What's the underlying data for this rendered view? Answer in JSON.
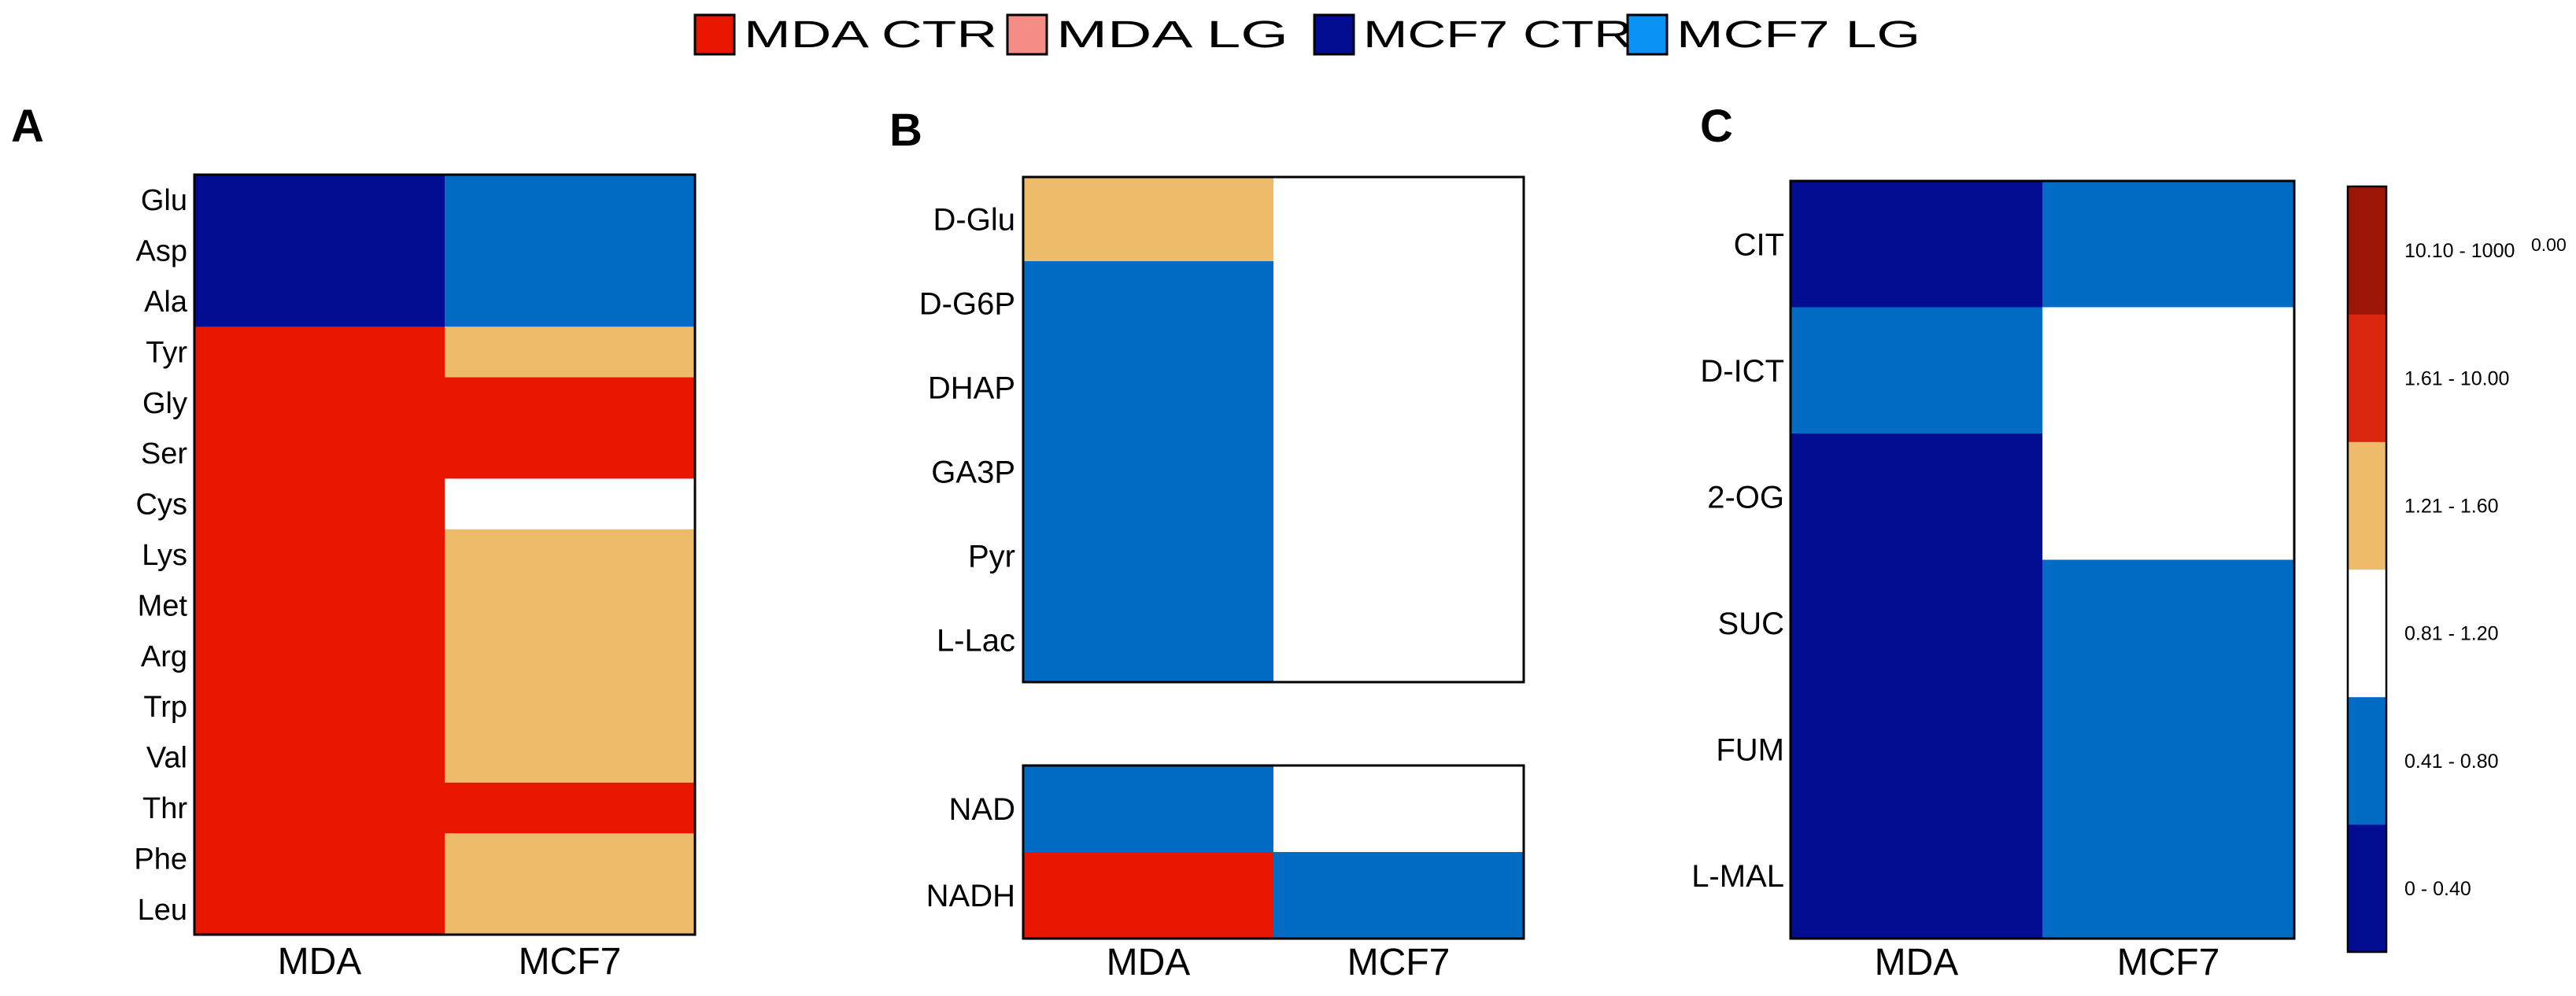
{
  "legend": {
    "items": [
      {
        "label": "MDA CTR",
        "color": "#E81600"
      },
      {
        "label": "MDA LG",
        "color": "#F58D86"
      },
      {
        "label": "MCF7 CTR",
        "color": "#020D91"
      },
      {
        "label": "MCF7 LG",
        "color": "#0A93F5"
      }
    ]
  },
  "chart_data": [
    {
      "type": "heatmap",
      "panel_label": "A",
      "categories": [
        "MDA",
        "MCF7"
      ],
      "rows": [
        "Glu",
        "Asp",
        "Ala",
        "Tyr",
        "Gly",
        "Ser",
        "Cys",
        "Lys",
        "Met",
        "Arg",
        "Trp",
        "Val",
        "Thr",
        "Phe",
        "Leu"
      ],
      "bins": [
        [
          0,
          1
        ],
        [
          0,
          1
        ],
        [
          0,
          1
        ],
        [
          4,
          3
        ],
        [
          4,
          4
        ],
        [
          4,
          4
        ],
        [
          4,
          2
        ],
        [
          4,
          3
        ],
        [
          4,
          3
        ],
        [
          4,
          3
        ],
        [
          4,
          3
        ],
        [
          4,
          3
        ],
        [
          4,
          4
        ],
        [
          4,
          3
        ],
        [
          4,
          3
        ]
      ]
    },
    {
      "type": "heatmap",
      "panel_label": "B",
      "categories": [
        "MDA",
        "MCF7"
      ],
      "groups": [
        {
          "rows": [
            "D-Glu",
            "D-G6P",
            "DHAP",
            "GA3P",
            "Pyr",
            "L-Lac"
          ],
          "bins": [
            [
              3,
              2
            ],
            [
              1,
              2
            ],
            [
              1,
              2
            ],
            [
              1,
              2
            ],
            [
              1,
              2
            ],
            [
              1,
              2
            ]
          ]
        },
        {
          "rows": [
            "NAD",
            "NADH"
          ],
          "bins": [
            [
              1,
              2
            ],
            [
              4,
              1
            ]
          ]
        }
      ]
    },
    {
      "type": "heatmap",
      "panel_label": "C",
      "categories": [
        "MDA",
        "MCF7"
      ],
      "rows": [
        "CIT",
        "D-ICT",
        "2-OG",
        "SUC",
        "FUM",
        "L-MAL"
      ],
      "bins": [
        [
          0,
          1
        ],
        [
          1,
          2
        ],
        [
          0,
          2
        ],
        [
          0,
          1
        ],
        [
          0,
          1
        ],
        [
          0,
          1
        ]
      ]
    }
  ],
  "colorbar": {
    "bins": [
      {
        "label": "0 - 0.40",
        "range": [
          0,
          0.4
        ],
        "color": "#020D91"
      },
      {
        "label": "0.41 - 0.80",
        "range": [
          0.41,
          0.8
        ],
        "color": "#026BC4"
      },
      {
        "label": "0.81 - 1.20",
        "range": [
          0.81,
          1.2
        ],
        "color": "#FFFFFF"
      },
      {
        "label": "1.21 - 1.60",
        "range": [
          1.21,
          1.6
        ],
        "color": "#EDBC6A"
      },
      {
        "label": "1.61 - 10.00",
        "range": [
          1.61,
          10.0
        ],
        "color": "#D8270E"
      },
      {
        "label": "10.10 - 1000",
        "range": [
          10.1,
          1000.0
        ],
        "color": "#9C1506"
      }
    ],
    "overflow_label": "0.00",
    "cell_colors": [
      "#020D91",
      "#026BC4",
      "#FFFFFF",
      "#EDBC6A",
      "#E81600"
    ]
  }
}
